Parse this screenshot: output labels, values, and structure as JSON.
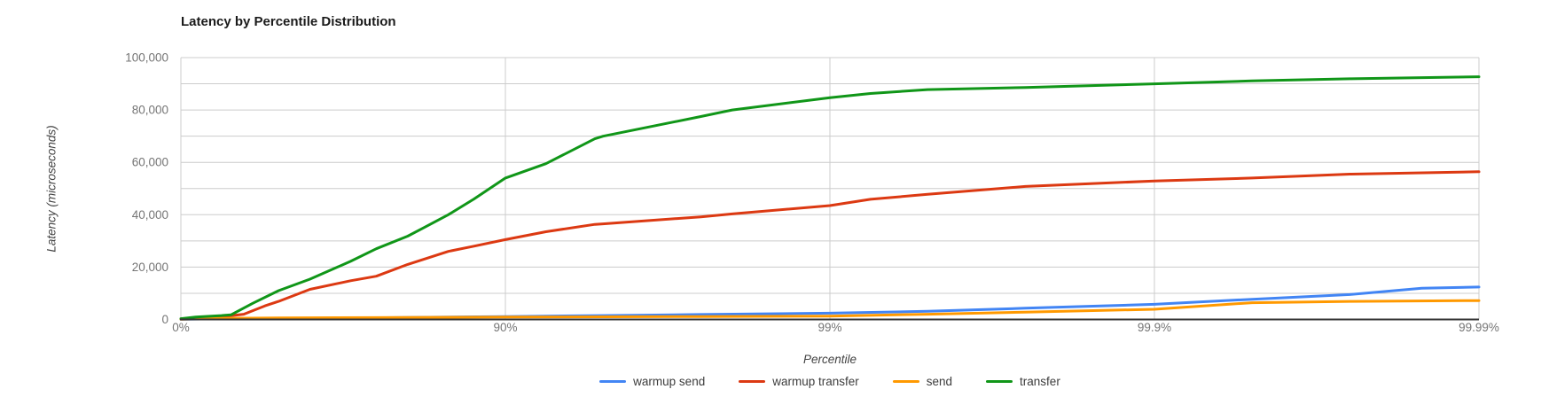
{
  "chart_data": {
    "type": "line",
    "title": "Latency by Percentile Distribution",
    "xlabel": "Percentile",
    "ylabel": "Latency (microseconds)",
    "x_scale": "logarithmic-percentile",
    "x_ticks": [
      "0%",
      "90%",
      "99%",
      "99.9%",
      "99.99%"
    ],
    "x_tick_decades": [
      0,
      1,
      2,
      3,
      4
    ],
    "ylim": [
      0,
      100000
    ],
    "y_ticks": [
      0,
      20000,
      40000,
      60000,
      80000,
      100000
    ],
    "y_gridline_step": 10000,
    "grid": true,
    "legend_position": "bottom",
    "series": [
      {
        "name": "warmup send",
        "color": "#4285F4",
        "points": [
          [
            0,
            100
          ],
          [
            25,
            250
          ],
          [
            50,
            400
          ],
          [
            75,
            650
          ],
          [
            90,
            1100
          ],
          [
            95,
            1500
          ],
          [
            97.5,
            1900
          ],
          [
            99,
            2400
          ],
          [
            99.5,
            3100
          ],
          [
            99.75,
            4300
          ],
          [
            99.9,
            5800
          ],
          [
            99.95,
            7700
          ],
          [
            99.975,
            9500
          ],
          [
            99.985,
            11900
          ],
          [
            99.99,
            12400
          ]
        ]
      },
      {
        "name": "warmup transfer",
        "color": "#DC3912",
        "points": [
          [
            0,
            200
          ],
          [
            10,
            600
          ],
          [
            25,
            1000
          ],
          [
            36,
            2000
          ],
          [
            45,
            5200
          ],
          [
            50,
            6900
          ],
          [
            60,
            11500
          ],
          [
            70,
            14800
          ],
          [
            75,
            16500
          ],
          [
            80,
            21000
          ],
          [
            85,
            26000
          ],
          [
            87.5,
            28000
          ],
          [
            90,
            30500
          ],
          [
            92.5,
            33500
          ],
          [
            94.7,
            36300
          ],
          [
            95,
            36500
          ],
          [
            97.5,
            39200
          ],
          [
            98,
            40300
          ],
          [
            99,
            43500
          ],
          [
            99.25,
            45900
          ],
          [
            99.5,
            47800
          ],
          [
            99.75,
            50800
          ],
          [
            99.9,
            52900
          ],
          [
            99.95,
            54000
          ],
          [
            99.975,
            55500
          ],
          [
            99.99,
            56400
          ]
        ]
      },
      {
        "name": "send",
        "color": "#FF9900",
        "points": [
          [
            0,
            100
          ],
          [
            25,
            400
          ],
          [
            50,
            600
          ],
          [
            75,
            700
          ],
          [
            90,
            900
          ],
          [
            95,
            1000
          ],
          [
            97.5,
            1100
          ],
          [
            99,
            1300
          ],
          [
            99.5,
            2000
          ],
          [
            99.75,
            2800
          ],
          [
            99.9,
            3900
          ],
          [
            99.95,
            6400
          ],
          [
            99.975,
            6900
          ],
          [
            99.99,
            7200
          ]
        ]
      },
      {
        "name": "transfer",
        "color": "#109618",
        "points": [
          [
            0,
            300
          ],
          [
            10,
            900
          ],
          [
            25,
            1500
          ],
          [
            30,
            1800
          ],
          [
            40,
            6200
          ],
          [
            50,
            11000
          ],
          [
            60,
            15400
          ],
          [
            70,
            22200
          ],
          [
            75,
            27000
          ],
          [
            80,
            31800
          ],
          [
            82,
            34800
          ],
          [
            85,
            40000
          ],
          [
            87.5,
            46000
          ],
          [
            90,
            54000
          ],
          [
            92.5,
            59500
          ],
          [
            94.7,
            69000
          ],
          [
            95,
            70000
          ],
          [
            97.5,
            77500
          ],
          [
            98,
            80000
          ],
          [
            99,
            84700
          ],
          [
            99.25,
            86300
          ],
          [
            99.5,
            87800
          ],
          [
            99.75,
            88600
          ],
          [
            99.9,
            90000
          ],
          [
            99.95,
            91100
          ],
          [
            99.975,
            91900
          ],
          [
            99.99,
            92700
          ]
        ]
      }
    ],
    "colors": {
      "gridline": "#cccccc",
      "axis_line": "#333333",
      "tick_text": "#757575"
    }
  }
}
